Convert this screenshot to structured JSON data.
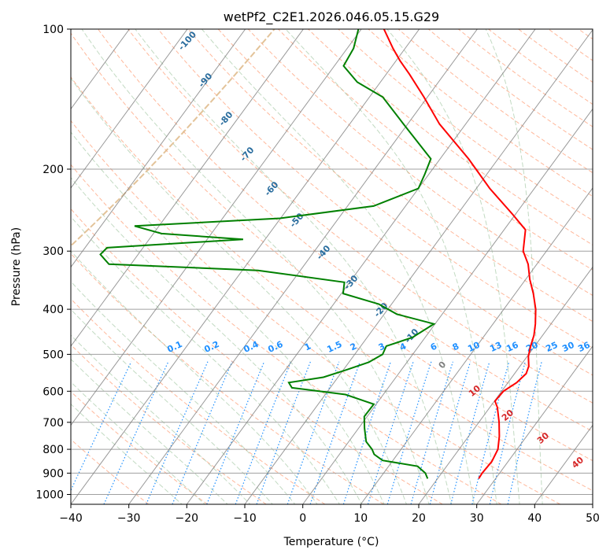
{
  "chart_data": {
    "type": "skew-t",
    "title": "wetPf2_C2E1.2026.046.05.15.G29",
    "xlabel": "Temperature (°C)",
    "ylabel": "Pressure (hPa)",
    "xlim": [
      -40,
      50
    ],
    "ylim": [
      1050,
      100
    ],
    "x_ticks": [
      "−40",
      "−30",
      "−20",
      "−10",
      "0",
      "10",
      "20",
      "30",
      "40",
      "50"
    ],
    "x_tick_values": [
      -40,
      -30,
      -20,
      -10,
      0,
      10,
      20,
      30,
      40,
      50
    ],
    "y_ticks": [
      "100",
      "200",
      "300",
      "400",
      "500",
      "600",
      "700",
      "800",
      "900",
      "1000"
    ],
    "y_tick_values": [
      100,
      200,
      300,
      400,
      500,
      600,
      700,
      800,
      900,
      1000
    ],
    "temperature_profile": {
      "name": "Temperature",
      "color": "#ff0000",
      "points": [
        [
          925,
          27.1
        ],
        [
          900,
          27.0
        ],
        [
          850,
          27.2
        ],
        [
          800,
          26.7
        ],
        [
          750,
          25.3
        ],
        [
          700,
          23.5
        ],
        [
          650,
          21.3
        ],
        [
          630,
          20.1
        ],
        [
          600,
          20.3
        ],
        [
          575,
          21.5
        ],
        [
          550,
          22.0
        ],
        [
          530,
          21.5
        ],
        [
          505,
          20.2
        ],
        [
          480,
          19.3
        ],
        [
          455,
          18.5
        ],
        [
          430,
          17.3
        ],
        [
          400,
          15.5
        ],
        [
          370,
          13.1
        ],
        [
          345,
          10.7
        ],
        [
          320,
          8.5
        ],
        [
          300,
          6.0
        ],
        [
          270,
          3.7
        ],
        [
          250,
          -0.5
        ],
        [
          220,
          -7.7
        ],
        [
          190,
          -15.1
        ],
        [
          160,
          -24.5
        ],
        [
          140,
          -30.6
        ],
        [
          125,
          -36.0
        ],
        [
          117,
          -39.3
        ],
        [
          110,
          -42.1
        ],
        [
          100,
          -46.1
        ]
      ]
    },
    "dewpoint_profile": {
      "name": "Dewpoint",
      "color": "#008000",
      "points": [
        [
          925,
          18.3
        ],
        [
          900,
          17.2
        ],
        [
          870,
          15.0
        ],
        [
          845,
          8.2
        ],
        [
          820,
          6.0
        ],
        [
          800,
          5.0
        ],
        [
          770,
          3.0
        ],
        [
          720,
          1.0
        ],
        [
          680,
          -0.5
        ],
        [
          640,
          -0.4
        ],
        [
          610,
          -6.5
        ],
        [
          590,
          -16.6
        ],
        [
          575,
          -17.8
        ],
        [
          560,
          -12.5
        ],
        [
          540,
          -9.5
        ],
        [
          520,
          -6.6
        ],
        [
          500,
          -5.2
        ],
        [
          480,
          -5.6
        ],
        [
          460,
          -2.2
        ],
        [
          430,
          -0.2
        ],
        [
          410,
          -7.8
        ],
        [
          390,
          -12.2
        ],
        [
          370,
          -19.7
        ],
        [
          350,
          -20.9
        ],
        [
          330,
          -37.3
        ],
        [
          320,
          -63.8
        ],
        [
          305,
          -66.5
        ],
        [
          295,
          -66.2
        ],
        [
          283,
          -43.8
        ],
        [
          275,
          -58.6
        ],
        [
          265,
          -64.2
        ],
        [
          255,
          -40.1
        ],
        [
          240,
          -25.5
        ],
        [
          220,
          -20.0
        ],
        [
          205,
          -20.7
        ],
        [
          190,
          -21.6
        ],
        [
          160,
          -30.7
        ],
        [
          140,
          -37.7
        ],
        [
          130,
          -44.0
        ],
        [
          120,
          -48.4
        ],
        [
          110,
          -48.9
        ],
        [
          100,
          -50.5
        ]
      ]
    },
    "dry_adiabats_labels": [
      "-100",
      "-90",
      "-80",
      "-70",
      "-60",
      "-50",
      "-40",
      "-30",
      "-20",
      "-10",
      "0"
    ],
    "moist_adiabats_labels": [
      "10",
      "20",
      "30",
      "40"
    ],
    "mixing_ratio_labels": [
      "0.1",
      "0.2",
      "0.4",
      "0.6",
      "1",
      "1.5",
      "2",
      "3",
      "4",
      "6",
      "8",
      "10",
      "13",
      "16",
      "20",
      "25",
      "30",
      "36"
    ],
    "grid": true,
    "line_colors": {
      "isotherm": "#808080",
      "isobar": "#a0a0a0",
      "dry_adiabat": "#ffa07a",
      "moist_adiabat": "#8fbc8f",
      "mixing_ratio": "#1e8fff",
      "dry_label": "#2a6d9e",
      "moist_label": "#d62728",
      "zero_label": "#808080",
      "thick_curve": "#deb887"
    }
  }
}
